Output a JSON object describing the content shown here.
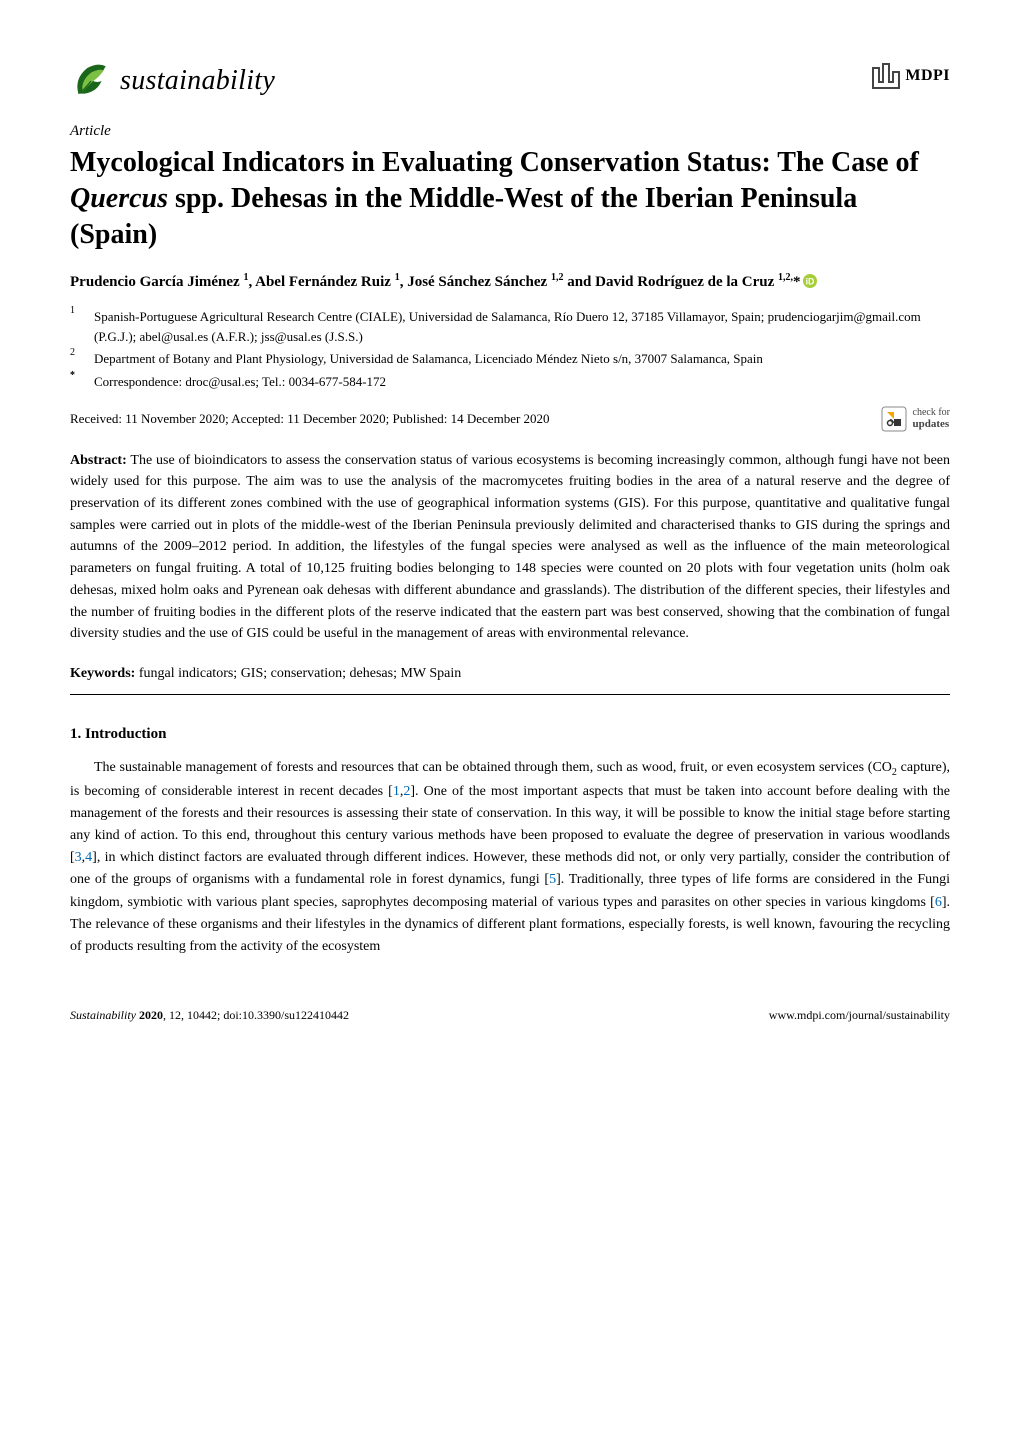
{
  "journal": {
    "name": "sustainability",
    "leaf_color_dark": "#1a661a",
    "leaf_color_light": "#7bc043"
  },
  "publisher": {
    "name": "MDPI",
    "mark_color": "#444444"
  },
  "article_type": "Article",
  "title": {
    "pre": "Mycological Indicators in Evaluating Conservation Status: The Case of ",
    "species": "Quercus",
    "post": " spp. Dehesas in the Middle-West of the Iberian Peninsula (Spain)"
  },
  "authors_html": "Prudencio García Jiménez <sup>1</sup>, Abel Fernández Ruiz <sup>1</sup>, José Sánchez Sánchez <sup>1,2</sup> and David Rodríguez de la Cruz <sup>1,2,</sup>*",
  "orcid_color": "#a6ce39",
  "affiliations": [
    {
      "num": "1",
      "text": "Spanish-Portuguese Agricultural Research Centre (CIALE), Universidad de Salamanca, Río Duero 12, 37185 Villamayor, Spain; prudenciogarjim@gmail.com (P.G.J.); abel@usal.es (A.F.R.); jss@usal.es (J.S.S.)"
    },
    {
      "num": "2",
      "text": "Department of Botany and Plant Physiology, Universidad de Salamanca, Licenciado Méndez Nieto s/n, 37007 Salamanca, Spain"
    }
  ],
  "correspondence": {
    "mark": "*",
    "text": "Correspondence: droc@usal.es; Tel.: 0034-677-584-172"
  },
  "received": "Received: 11 November 2020; Accepted: 11 December 2020; Published: 14 December 2020",
  "check_updates": {
    "line1": "check for",
    "line2": "updates",
    "accent": "#f7a600"
  },
  "abstract": {
    "label": "Abstract:",
    "text": "The use of bioindicators to assess the conservation status of various ecosystems is becoming increasingly common, although fungi have not been widely used for this purpose. The aim was to use the analysis of the macromycetes fruiting bodies in the area of a natural reserve and the degree of preservation of its different zones combined with the use of geographical information systems (GIS). For this purpose, quantitative and qualitative fungal samples were carried out in plots of the middle-west of the Iberian Peninsula previously delimited and characterised thanks to GIS during the springs and autumns of the 2009–2012 period. In addition, the lifestyles of the fungal species were analysed as well as the influence of the main meteorological parameters on fungal fruiting. A total of 10,125 fruiting bodies belonging to 148 species were counted on 20 plots with four vegetation units (holm oak dehesas, mixed holm oaks and Pyrenean oak dehesas with different abundance and grasslands). The distribution of the different species, their lifestyles and the number of fruiting bodies in the different plots of the reserve indicated that the eastern part was best conserved, showing that the combination of fungal diversity studies and the use of GIS could be useful in the management of areas with environmental relevance."
  },
  "keywords": {
    "label": "Keywords:",
    "text": "fungal indicators; GIS; conservation; dehesas; MW Spain"
  },
  "section1": {
    "heading": "1. Introduction",
    "para": "The sustainable management of forests and resources that can be obtained through them, such as wood, fruit, or even ecosystem services (CO₂ capture), is becoming of considerable interest in recent decades [1,2]. One of the most important aspects that must be taken into account before dealing with the management of the forests and their resources is assessing their state of conservation. In this way, it will be possible to know the initial stage before starting any kind of action. To this end, throughout this century various methods have been proposed to evaluate the degree of preservation in various woodlands [3,4], in which distinct factors are evaluated through different indices. However, these methods did not, or only very partially, consider the contribution of one of the groups of organisms with a fundamental role in forest dynamics, fungi [5]. Traditionally, three types of life forms are considered in the Fungi kingdom, symbiotic with various plant species, saprophytes decomposing material of various types and parasites on other species in various kingdoms [6]. The relevance of these organisms and their lifestyles in the dynamics of different plant formations, especially forests, is well known, favouring the recycling of products resulting from the activity of the ecosystem",
    "cite_color": "#0066b3"
  },
  "footer": {
    "left_journal": "Sustainability",
    "left_year": "2020",
    "left_rest": ", 12, 10442; doi:10.3390/su122410442",
    "right": "www.mdpi.com/journal/sustainability"
  }
}
